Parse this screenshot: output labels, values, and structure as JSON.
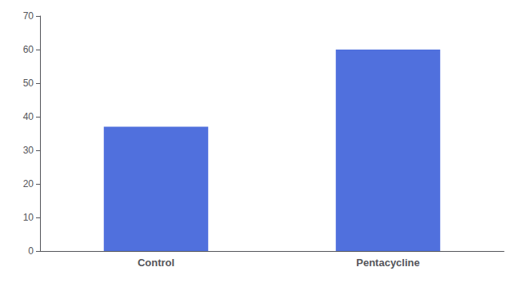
{
  "chart_data": {
    "type": "bar",
    "categories": [
      "Control",
      "Pentacycline"
    ],
    "values": [
      37,
      60
    ],
    "ylim": [
      0,
      70
    ],
    "yticks": [
      0,
      10,
      20,
      30,
      40,
      50,
      60,
      70
    ],
    "grid": false
  }
}
